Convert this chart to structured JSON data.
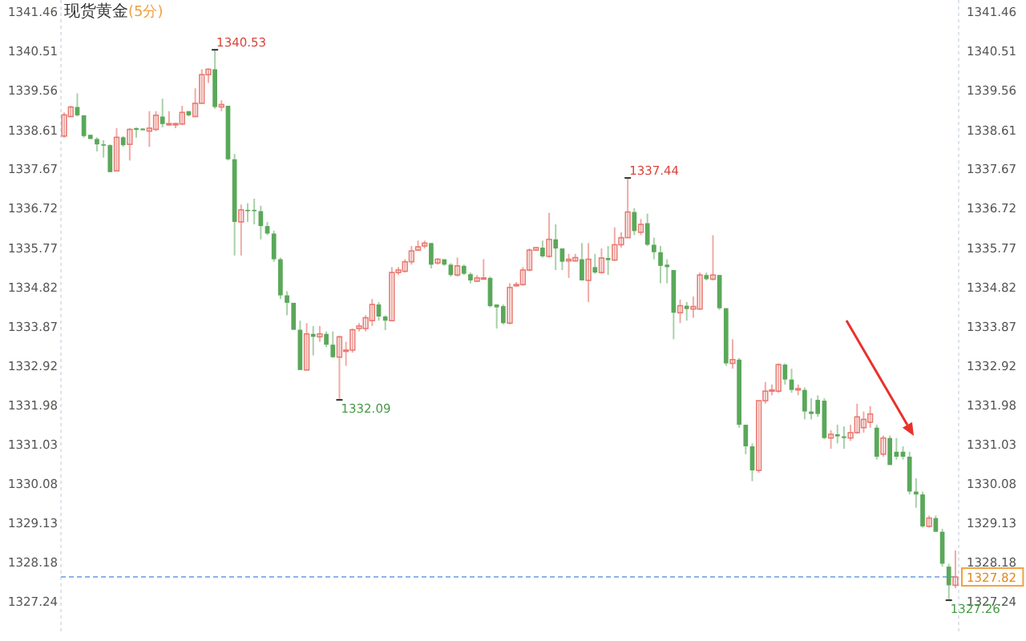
{
  "chart_data": {
    "type": "candlestick",
    "title": "现货黄金",
    "subtitle": "(5分)",
    "categories": [
      null,
      null,
      null,
      null,
      null,
      null,
      null,
      null,
      null,
      null,
      null,
      null,
      null,
      null,
      null,
      null,
      null,
      null,
      null,
      null,
      null,
      null,
      null,
      null,
      null,
      null,
      null,
      null,
      null,
      null,
      null,
      null,
      null,
      null,
      null,
      null,
      null,
      null,
      null,
      null,
      null,
      null,
      null,
      null,
      null,
      null,
      null,
      null,
      null,
      null,
      null,
      null,
      null,
      null,
      null,
      null,
      null,
      null,
      null,
      null,
      null,
      null,
      null,
      null,
      null,
      null,
      null,
      null,
      null,
      null,
      null,
      null,
      null,
      null,
      null,
      null,
      null,
      null,
      null,
      null,
      null,
      null,
      null,
      null,
      null,
      null,
      null,
      null,
      null,
      null,
      null,
      null,
      null,
      null,
      null,
      null,
      null,
      null,
      null,
      null,
      null,
      null,
      null,
      null,
      null,
      null,
      null,
      null,
      null,
      null,
      null,
      null,
      null,
      null,
      null,
      null,
      null,
      null,
      null,
      null,
      null,
      null,
      null,
      null,
      null,
      null,
      null,
      null,
      null,
      null,
      null,
      null,
      null,
      null,
      null,
      null,
      null
    ],
    "ohlc": [
      [
        1338.45,
        1339.02,
        1338.41,
        1338.96
      ],
      [
        1338.92,
        1339.18,
        1338.9,
        1339.15
      ],
      [
        1339.15,
        1339.48,
        1338.92,
        1338.95
      ],
      [
        1338.95,
        1338.95,
        1338.41,
        1338.45
      ],
      [
        1338.48,
        1338.48,
        1338.38,
        1338.38
      ],
      [
        1338.38,
        1338.42,
        1338.08,
        1338.25
      ],
      [
        1338.25,
        1338.35,
        1337.93,
        1338.23
      ],
      [
        1338.23,
        1338.25,
        1337.58,
        1337.58
      ],
      [
        1337.61,
        1338.64,
        1337.61,
        1338.42
      ],
      [
        1338.42,
        1338.45,
        1338.19,
        1338.23
      ],
      [
        1338.25,
        1338.64,
        1337.86,
        1338.61
      ],
      [
        1338.64,
        1338.66,
        1338.41,
        1338.6
      ],
      [
        1338.63,
        1338.64,
        1338.59,
        1338.59
      ],
      [
        1338.57,
        1339.05,
        1338.19,
        1338.64
      ],
      [
        1338.61,
        1339.05,
        1338.57,
        1338.95
      ],
      [
        1338.92,
        1339.35,
        1338.66,
        1338.74
      ],
      [
        1338.73,
        1339.05,
        1338.7,
        1338.75
      ],
      [
        1338.74,
        1338.77,
        1338.64,
        1338.75
      ],
      [
        1338.74,
        1339.18,
        1338.72,
        1339.02
      ],
      [
        1339.05,
        1339.05,
        1338.92,
        1338.95
      ],
      [
        1338.92,
        1339.6,
        1338.92,
        1339.24
      ],
      [
        1339.24,
        1340.06,
        1339.22,
        1339.93
      ],
      [
        1339.93,
        1340.08,
        1339.73,
        1340.06
      ],
      [
        1340.06,
        1340.53,
        1339.11,
        1339.15
      ],
      [
        1339.15,
        1339.31,
        1339.05,
        1339.21
      ],
      [
        1339.18,
        1339.18,
        1337.86,
        1337.89
      ],
      [
        1337.89,
        1338.02,
        1335.57,
        1336.38
      ],
      [
        1336.38,
        1336.8,
        1335.57,
        1336.67
      ],
      [
        1336.67,
        1336.83,
        1336.38,
        1336.64
      ],
      [
        1336.67,
        1336.94,
        1336.32,
        1336.64
      ],
      [
        1336.64,
        1336.77,
        1335.96,
        1336.28
      ],
      [
        1336.28,
        1336.38,
        1336.06,
        1336.1
      ],
      [
        1336.1,
        1336.17,
        1335.42,
        1335.48
      ],
      [
        1335.48,
        1335.52,
        1334.52,
        1334.61
      ],
      [
        1334.61,
        1334.71,
        1334.13,
        1334.43
      ],
      [
        1334.43,
        1334.43,
        1333.78,
        1333.78
      ],
      [
        1333.78,
        1334.0,
        1332.81,
        1332.81
      ],
      [
        1332.81,
        1333.94,
        1332.81,
        1333.68
      ],
      [
        1333.68,
        1333.87,
        1333.16,
        1333.61
      ],
      [
        1333.61,
        1333.87,
        1333.49,
        1333.68
      ],
      [
        1333.68,
        1333.74,
        1333.36,
        1333.42
      ],
      [
        1333.42,
        1333.74,
        1333.1,
        1333.12
      ],
      [
        1333.12,
        1333.64,
        1332.09,
        1333.61
      ],
      [
        1333.27,
        1333.49,
        1332.91,
        1333.29
      ],
      [
        1333.29,
        1333.81,
        1333.23,
        1333.78
      ],
      [
        1333.81,
        1333.94,
        1333.74,
        1333.87
      ],
      [
        1333.81,
        1334.13,
        1333.74,
        1334.07
      ],
      [
        1334.0,
        1334.52,
        1333.87,
        1334.39
      ],
      [
        1334.39,
        1334.45,
        1334.0,
        1334.1
      ],
      [
        1334.1,
        1334.13,
        1333.77,
        1334.0
      ],
      [
        1334.0,
        1335.29,
        1334.0,
        1335.16
      ],
      [
        1335.16,
        1335.29,
        1335.1,
        1335.22
      ],
      [
        1335.19,
        1335.48,
        1335.16,
        1335.42
      ],
      [
        1335.42,
        1335.8,
        1335.35,
        1335.68
      ],
      [
        1335.7,
        1335.93,
        1335.68,
        1335.78
      ],
      [
        1335.8,
        1335.93,
        1335.74,
        1335.87
      ],
      [
        1335.87,
        1335.87,
        1335.26,
        1335.35
      ],
      [
        1335.39,
        1335.51,
        1335.35,
        1335.48
      ],
      [
        1335.48,
        1335.48,
        1335.32,
        1335.35
      ],
      [
        1335.35,
        1335.39,
        1335.06,
        1335.1
      ],
      [
        1335.1,
        1335.52,
        1335.06,
        1335.32
      ],
      [
        1335.32,
        1335.35,
        1335.1,
        1335.13
      ],
      [
        1335.12,
        1335.16,
        1334.9,
        1334.97
      ],
      [
        1334.95,
        1335.1,
        1334.93,
        1335.03
      ],
      [
        1335.0,
        1335.48,
        1335.0,
        1335.03
      ],
      [
        1335.03,
        1335.06,
        1334.32,
        1334.35
      ],
      [
        1334.39,
        1334.39,
        1333.81,
        1334.32
      ],
      [
        1334.35,
        1334.39,
        1333.91,
        1333.94
      ],
      [
        1333.94,
        1334.9,
        1333.91,
        1334.8
      ],
      [
        1334.84,
        1334.93,
        1334.82,
        1334.87
      ],
      [
        1334.87,
        1335.29,
        1334.84,
        1335.22
      ],
      [
        1335.22,
        1335.74,
        1335.19,
        1335.7
      ],
      [
        1335.7,
        1335.78,
        1335.68,
        1335.76
      ],
      [
        1335.76,
        1335.93,
        1335.52,
        1335.55
      ],
      [
        1335.55,
        1336.6,
        1335.52,
        1335.96
      ],
      [
        1335.96,
        1336.32,
        1335.22,
        1335.74
      ],
      [
        1335.74,
        1335.74,
        1335.22,
        1335.42
      ],
      [
        1335.44,
        1335.61,
        1335.03,
        1335.48
      ],
      [
        1335.44,
        1335.61,
        1335.42,
        1335.52
      ],
      [
        1335.48,
        1335.87,
        1334.97,
        1334.97
      ],
      [
        1334.97,
        1335.87,
        1334.45,
        1335.48
      ],
      [
        1335.29,
        1335.61,
        1335.13,
        1335.16
      ],
      [
        1335.16,
        1335.74,
        1335.13,
        1335.51
      ],
      [
        1335.51,
        1335.8,
        1335.1,
        1335.46
      ],
      [
        1335.46,
        1336.25,
        1335.44,
        1335.83
      ],
      [
        1335.83,
        1336.13,
        1335.76,
        1336.0
      ],
      [
        1336.0,
        1337.44,
        1336.0,
        1336.62
      ],
      [
        1336.62,
        1336.71,
        1336.06,
        1336.16
      ],
      [
        1336.13,
        1336.45,
        1336.06,
        1336.32
      ],
      [
        1336.35,
        1336.58,
        1335.8,
        1335.83
      ],
      [
        1335.83,
        1336.0,
        1335.48,
        1335.65
      ],
      [
        1335.65,
        1335.8,
        1334.9,
        1335.32
      ],
      [
        1335.35,
        1335.48,
        1334.9,
        1335.29
      ],
      [
        1335.22,
        1335.22,
        1333.55,
        1334.19
      ],
      [
        1334.19,
        1334.51,
        1333.94,
        1334.36
      ],
      [
        1334.36,
        1334.45,
        1334.0,
        1334.28
      ],
      [
        1334.28,
        1334.58,
        1334.07,
        1334.34
      ],
      [
        1334.28,
        1335.16,
        1334.26,
        1335.1
      ],
      [
        1335.1,
        1335.16,
        1334.97,
        1335.0
      ],
      [
        1335.0,
        1336.06,
        1334.97,
        1335.1
      ],
      [
        1335.1,
        1335.1,
        1334.26,
        1334.3
      ],
      [
        1334.3,
        1334.3,
        1332.91,
        1332.97
      ],
      [
        1332.97,
        1333.55,
        1332.84,
        1333.06
      ],
      [
        1333.06,
        1333.1,
        1331.42,
        1331.49
      ],
      [
        1331.49,
        1331.49,
        1330.78,
        1330.97
      ],
      [
        1330.97,
        1331.04,
        1330.13,
        1330.39
      ],
      [
        1330.39,
        1332.07,
        1330.33,
        1332.07
      ],
      [
        1332.07,
        1332.52,
        1332.0,
        1332.3
      ],
      [
        1332.3,
        1332.46,
        1332.2,
        1332.33
      ],
      [
        1332.3,
        1332.97,
        1332.26,
        1332.94
      ],
      [
        1332.94,
        1332.97,
        1332.46,
        1332.58
      ],
      [
        1332.58,
        1332.84,
        1332.26,
        1332.33
      ],
      [
        1332.33,
        1332.46,
        1332.2,
        1332.36
      ],
      [
        1332.33,
        1332.39,
        1331.62,
        1331.81
      ],
      [
        1331.81,
        1332.13,
        1331.62,
        1331.75
      ],
      [
        1332.09,
        1332.2,
        1331.68,
        1331.75
      ],
      [
        1332.07,
        1332.13,
        1331.14,
        1331.17
      ],
      [
        1331.17,
        1331.36,
        1330.91,
        1331.26
      ],
      [
        1331.26,
        1331.49,
        1331.04,
        1331.21
      ],
      [
        1331.21,
        1331.45,
        1330.91,
        1331.17
      ],
      [
        1331.17,
        1331.49,
        1331.1,
        1331.3
      ],
      [
        1331.3,
        1332.0,
        1331.27,
        1331.68
      ],
      [
        1331.42,
        1331.81,
        1331.3,
        1331.62
      ],
      [
        1331.55,
        1331.94,
        1331.42,
        1331.75
      ],
      [
        1331.42,
        1331.49,
        1330.65,
        1330.72
      ],
      [
        1330.78,
        1331.23,
        1330.72,
        1331.17
      ],
      [
        1331.17,
        1331.23,
        1330.52,
        1330.52
      ],
      [
        1330.84,
        1331.17,
        1330.65,
        1330.72
      ],
      [
        1330.84,
        1330.97,
        1330.65,
        1330.72
      ],
      [
        1330.72,
        1330.84,
        1329.81,
        1329.88
      ],
      [
        1329.88,
        1330.2,
        1329.49,
        1329.81
      ],
      [
        1329.81,
        1329.88,
        1329.01,
        1329.04
      ],
      [
        1329.04,
        1329.3,
        1329.01,
        1329.24
      ],
      [
        1329.24,
        1329.3,
        1328.91,
        1328.91
      ],
      [
        1328.91,
        1328.98,
        1328.07,
        1328.14
      ],
      [
        1328.07,
        1328.14,
        1327.26,
        1327.62
      ],
      [
        1327.62,
        1328.46,
        1327.55,
        1327.82
      ]
    ],
    "ylim": [
      1326.47,
      1341.73
    ],
    "yticks": [
      1341.46,
      1340.51,
      1339.56,
      1338.61,
      1337.67,
      1336.72,
      1335.77,
      1334.82,
      1333.87,
      1332.92,
      1331.98,
      1331.03,
      1330.08,
      1329.13,
      1328.18,
      1327.24
    ],
    "y2lim": [
      1326.47,
      1341.73
    ],
    "y2ticks": [
      1341.46,
      1340.51,
      1339.56,
      1338.61,
      1337.67,
      1336.72,
      1335.77,
      1334.82,
      1333.87,
      1332.92,
      1331.98,
      1331.03,
      1330.08,
      1329.13,
      1328.18,
      1327.24
    ],
    "annotations": [
      "1340.53",
      "1337.44",
      "1332.09",
      "1327.26"
    ],
    "ref_lines": [
      {
        "axis": "y2",
        "value": 1327.82,
        "label": "1327.82",
        "color": "#8ab4e8",
        "line_style": "dashed"
      }
    ]
  }
}
